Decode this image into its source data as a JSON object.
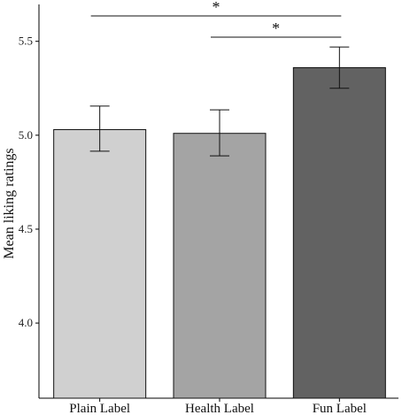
{
  "chart_data": {
    "type": "bar",
    "categories": [
      "Plain Label",
      "Health Label",
      "Fun Label"
    ],
    "values": [
      5.03,
      5.01,
      5.36
    ],
    "error_low": [
      4.915,
      4.89,
      5.25
    ],
    "error_high": [
      5.155,
      5.135,
      5.47
    ],
    "bar_colors": [
      "#d0d0d0",
      "#a4a4a4",
      "#626262"
    ],
    "xlabel": "",
    "ylabel": "Mean liking ratings",
    "ylim": [
      3.6,
      5.72
    ],
    "yticks": [
      4.0,
      4.5,
      5.0,
      5.5
    ],
    "ytick_labels": [
      "4.0",
      "4.5",
      "5.0",
      "5.5"
    ],
    "grid": false,
    "significance": [
      {
        "from": 0,
        "to": 2,
        "label": "*"
      },
      {
        "from": 1,
        "to": 2,
        "label": "*"
      }
    ]
  }
}
